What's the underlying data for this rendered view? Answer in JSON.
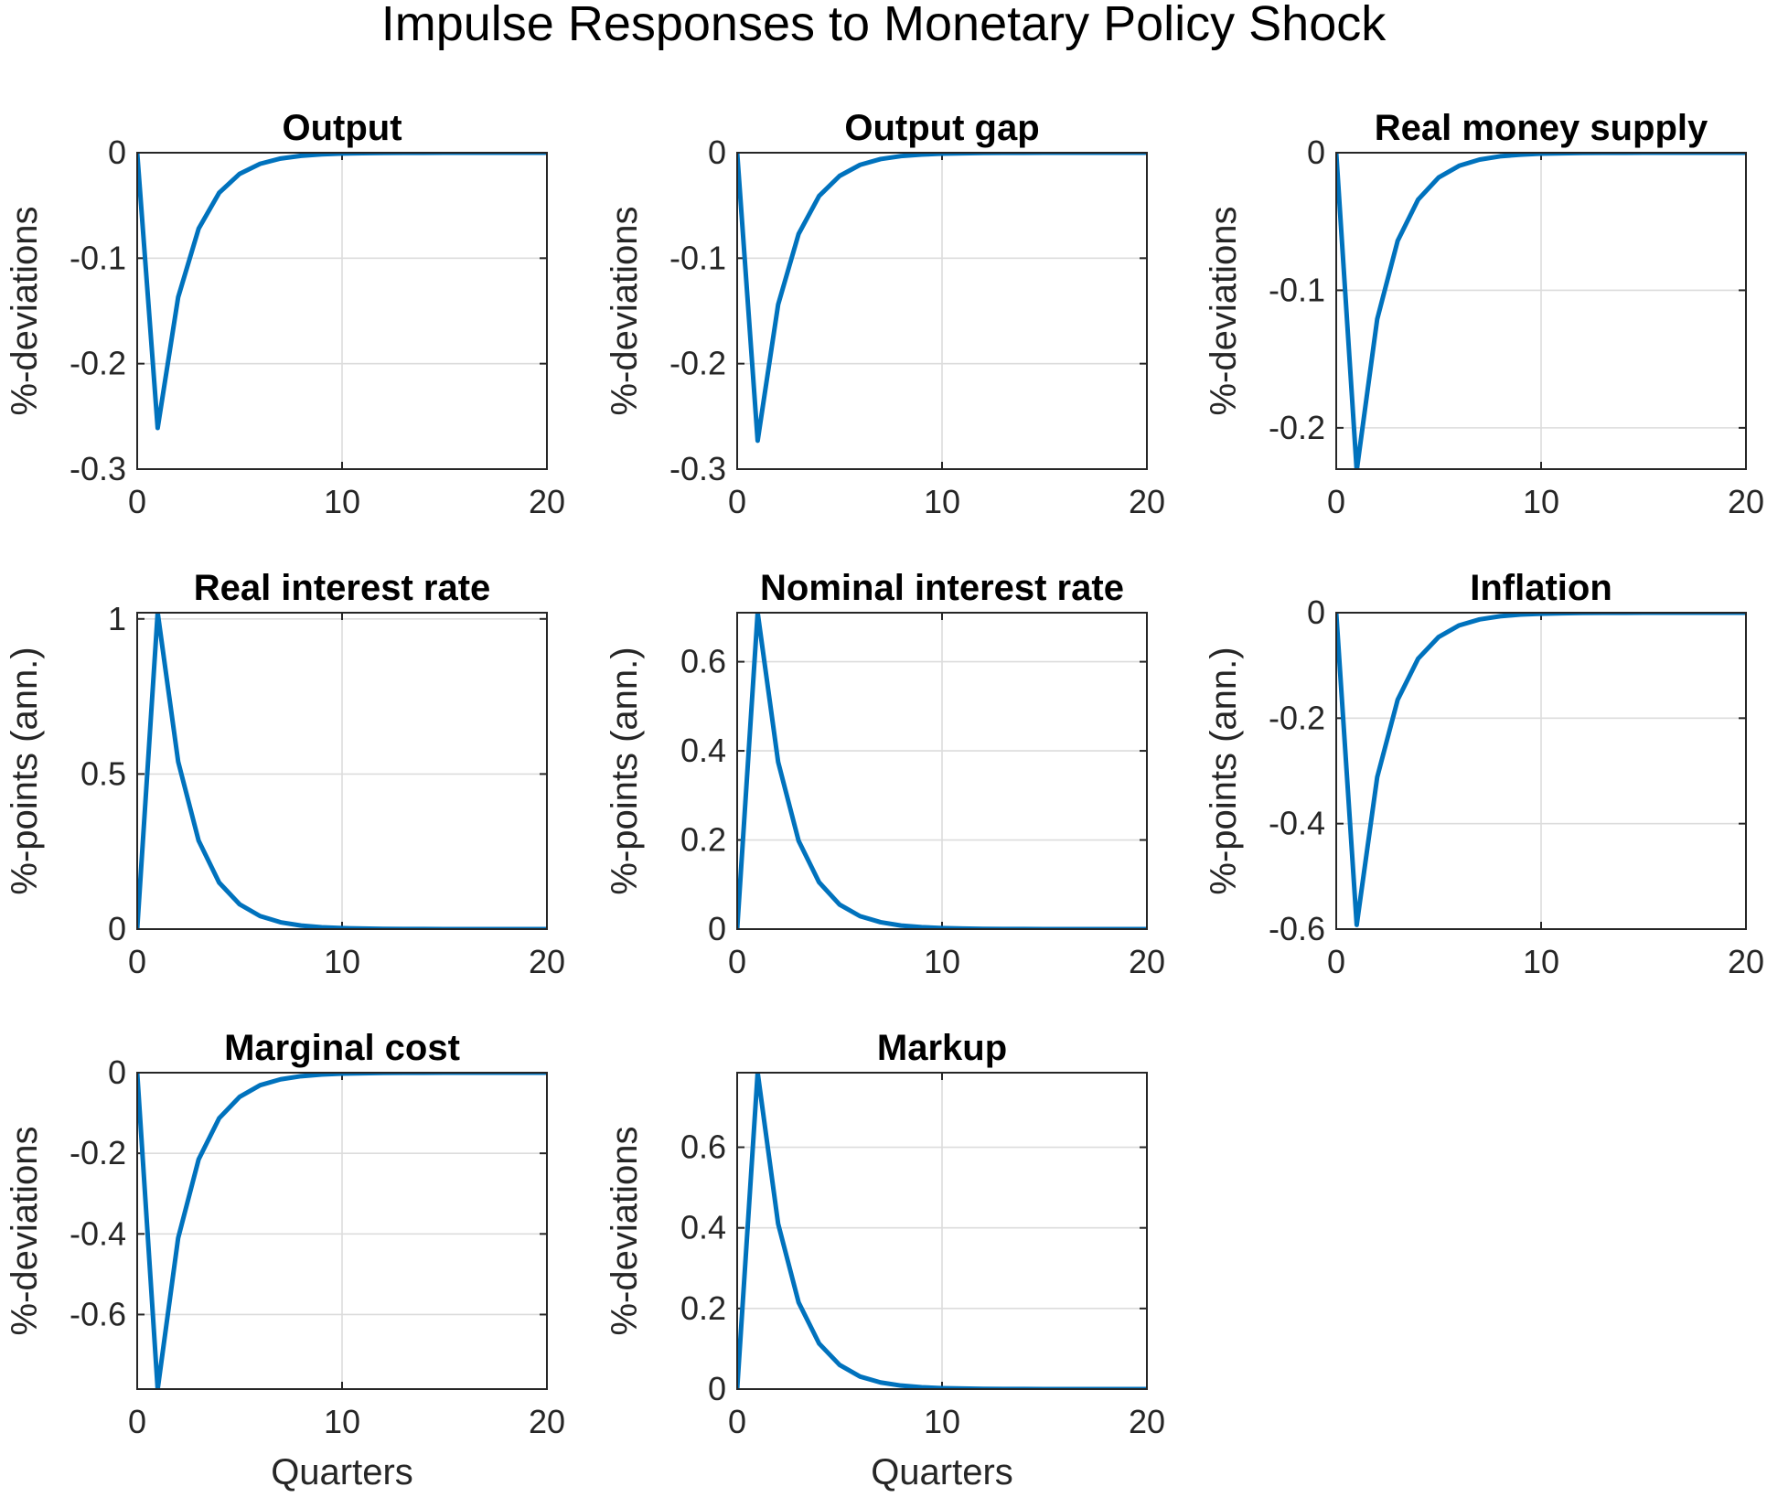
{
  "figure": {
    "suptitle": "Impulse Responses to Monetary Policy Shock",
    "line_color": "#0072BD",
    "grid": true
  },
  "chart_data": [
    {
      "type": "line",
      "title": "Output",
      "xlabel": "",
      "ylabel": "%-deviations",
      "xlim": [
        0,
        20
      ],
      "ylim": [
        -0.3,
        0
      ],
      "xticks": [
        0,
        10,
        20
      ],
      "xtick_labels": [
        "0",
        "10",
        "20"
      ],
      "yticks": [
        -0.3,
        -0.2,
        -0.1,
        0
      ],
      "ytick_labels": [
        "-0.3",
        "-0.2",
        "-0.1",
        "0"
      ],
      "x": [
        0,
        1,
        2,
        3,
        4,
        5,
        6,
        7,
        8,
        9,
        10,
        11,
        12,
        13,
        14,
        15,
        16,
        17,
        18,
        19,
        20
      ],
      "y": [
        0,
        -0.261,
        -0.137,
        -0.072,
        -0.038,
        -0.02,
        -0.0105,
        -0.0055,
        -0.0029,
        -0.0015,
        -0.0008,
        -0.0004,
        -0.0002,
        -0.0001,
        -6e-05,
        -3e-05,
        0,
        0,
        0,
        0,
        0
      ]
    },
    {
      "type": "line",
      "title": "Output gap",
      "xlabel": "",
      "ylabel": "%-deviations",
      "xlim": [
        0,
        20
      ],
      "ylim": [
        -0.3,
        0
      ],
      "xticks": [
        0,
        10,
        20
      ],
      "xtick_labels": [
        "0",
        "10",
        "20"
      ],
      "yticks": [
        -0.3,
        -0.2,
        -0.1,
        0
      ],
      "ytick_labels": [
        "-0.3",
        "-0.2",
        "-0.1",
        "0"
      ],
      "x": [
        0,
        1,
        2,
        3,
        4,
        5,
        6,
        7,
        8,
        9,
        10,
        11,
        12,
        13,
        14,
        15,
        16,
        17,
        18,
        19,
        20
      ],
      "y": [
        0,
        -0.273,
        -0.144,
        -0.077,
        -0.041,
        -0.022,
        -0.0115,
        -0.006,
        -0.0032,
        -0.0017,
        -0.0009,
        -0.0005,
        -0.00025,
        -0.00013,
        -7e-05,
        -4e-05,
        0,
        0,
        0,
        0,
        0
      ]
    },
    {
      "type": "line",
      "title": "Real money supply",
      "xlabel": "",
      "ylabel": "%-deviations",
      "xlim": [
        0,
        20
      ],
      "ylim": [
        -0.23,
        0
      ],
      "xticks": [
        0,
        10,
        20
      ],
      "xtick_labels": [
        "0",
        "10",
        "20"
      ],
      "yticks": [
        -0.2,
        -0.1,
        0
      ],
      "ytick_labels": [
        "-0.2",
        "-0.1",
        "0"
      ],
      "x": [
        0,
        1,
        2,
        3,
        4,
        5,
        6,
        7,
        8,
        9,
        10,
        11,
        12,
        13,
        14,
        15,
        16,
        17,
        18,
        19,
        20
      ],
      "y": [
        0,
        -0.231,
        -0.121,
        -0.064,
        -0.034,
        -0.018,
        -0.0095,
        -0.005,
        -0.0026,
        -0.0014,
        -0.0007,
        -0.0004,
        -0.0002,
        -0.0001,
        -5e-05,
        -3e-05,
        0,
        0,
        0,
        0,
        0
      ]
    },
    {
      "type": "line",
      "title": "Real interest rate",
      "xlabel": "",
      "ylabel": "%-points (ann.)",
      "xlim": [
        0,
        20
      ],
      "ylim": [
        0,
        1.02
      ],
      "xticks": [
        0,
        10,
        20
      ],
      "xtick_labels": [
        "0",
        "10",
        "20"
      ],
      "yticks": [
        0,
        0.5,
        1
      ],
      "ytick_labels": [
        "0",
        "0.5",
        "1"
      ],
      "x": [
        0,
        1,
        2,
        3,
        4,
        5,
        6,
        7,
        8,
        9,
        10,
        11,
        12,
        13,
        14,
        15,
        16,
        17,
        18,
        19,
        20
      ],
      "y": [
        0,
        1.02,
        0.54,
        0.285,
        0.15,
        0.08,
        0.042,
        0.022,
        0.0115,
        0.006,
        0.0032,
        0.0017,
        0.0009,
        0.0005,
        0.00025,
        0.00013,
        0,
        0,
        0,
        0,
        0
      ]
    },
    {
      "type": "line",
      "title": "Nominal interest rate",
      "xlabel": "",
      "ylabel": "%-points (ann.)",
      "xlim": [
        0,
        20
      ],
      "ylim": [
        0,
        0.71
      ],
      "xticks": [
        0,
        10,
        20
      ],
      "xtick_labels": [
        "0",
        "10",
        "20"
      ],
      "yticks": [
        0,
        0.2,
        0.4,
        0.6
      ],
      "ytick_labels": [
        "0",
        "0.2",
        "0.4",
        "0.6"
      ],
      "x": [
        0,
        1,
        2,
        3,
        4,
        5,
        6,
        7,
        8,
        9,
        10,
        11,
        12,
        13,
        14,
        15,
        16,
        17,
        18,
        19,
        20
      ],
      "y": [
        0,
        0.71,
        0.375,
        0.198,
        0.105,
        0.055,
        0.029,
        0.0155,
        0.008,
        0.0043,
        0.0023,
        0.0012,
        0.0006,
        0.0003,
        0.00017,
        9e-05,
        0,
        0,
        0,
        0,
        0
      ]
    },
    {
      "type": "line",
      "title": "Inflation",
      "xlabel": "",
      "ylabel": "%-points (ann.)",
      "xlim": [
        0,
        20
      ],
      "ylim": [
        -0.6,
        0
      ],
      "xticks": [
        0,
        10,
        20
      ],
      "xtick_labels": [
        "0",
        "10",
        "20"
      ],
      "yticks": [
        -0.6,
        -0.4,
        -0.2,
        0
      ],
      "ytick_labels": [
        "-0.6",
        "-0.4",
        "-0.2",
        "0"
      ],
      "x": [
        0,
        1,
        2,
        3,
        4,
        5,
        6,
        7,
        8,
        9,
        10,
        11,
        12,
        13,
        14,
        15,
        16,
        17,
        18,
        19,
        20
      ],
      "y": [
        0,
        -0.592,
        -0.312,
        -0.165,
        -0.087,
        -0.046,
        -0.024,
        -0.0127,
        -0.0067,
        -0.0035,
        -0.0019,
        -0.001,
        -0.0005,
        -0.00027,
        -0.00014,
        -8e-05,
        0,
        0,
        0,
        0,
        0
      ]
    },
    {
      "type": "line",
      "title": "Marginal cost",
      "xlabel": "Quarters",
      "ylabel": "%-deviations",
      "xlim": [
        0,
        20
      ],
      "ylim": [
        -0.785,
        0
      ],
      "xticks": [
        0,
        10,
        20
      ],
      "xtick_labels": [
        "0",
        "10",
        "20"
      ],
      "yticks": [
        -0.6,
        -0.4,
        -0.2,
        0
      ],
      "ytick_labels": [
        "-0.6",
        "-0.4",
        "-0.2",
        "0"
      ],
      "x": [
        0,
        1,
        2,
        3,
        4,
        5,
        6,
        7,
        8,
        9,
        10,
        11,
        12,
        13,
        14,
        15,
        16,
        17,
        18,
        19,
        20
      ],
      "y": [
        0,
        -0.785,
        -0.41,
        -0.215,
        -0.113,
        -0.06,
        -0.031,
        -0.0165,
        -0.0087,
        -0.0046,
        -0.0024,
        -0.0013,
        -0.0007,
        -0.00035,
        -0.00018,
        -0.0001,
        0,
        0,
        0,
        0,
        0
      ]
    },
    {
      "type": "line",
      "title": "Markup",
      "xlabel": "Quarters",
      "ylabel": "%-deviations",
      "xlim": [
        0,
        20
      ],
      "ylim": [
        0,
        0.785
      ],
      "xticks": [
        0,
        10,
        20
      ],
      "xtick_labels": [
        "0",
        "10",
        "20"
      ],
      "yticks": [
        0,
        0.2,
        0.4,
        0.6
      ],
      "ytick_labels": [
        "0",
        "0.2",
        "0.4",
        "0.6"
      ],
      "x": [
        0,
        1,
        2,
        3,
        4,
        5,
        6,
        7,
        8,
        9,
        10,
        11,
        12,
        13,
        14,
        15,
        16,
        17,
        18,
        19,
        20
      ],
      "y": [
        0,
        0.785,
        0.41,
        0.215,
        0.113,
        0.06,
        0.031,
        0.0165,
        0.0087,
        0.0046,
        0.0024,
        0.0013,
        0.0007,
        0.00035,
        0.00018,
        0.0001,
        0,
        0,
        0,
        0,
        0
      ]
    }
  ]
}
